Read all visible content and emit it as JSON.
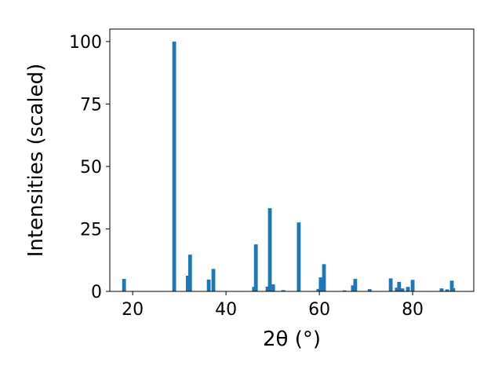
{
  "chart_data": {
    "type": "bar",
    "xlabel": "2θ (°)",
    "ylabel": "Intensities (scaled)",
    "x": [
      18.15,
      28.9,
      31.8,
      32.3,
      36.3,
      37.3,
      46.0,
      46.4,
      48.9,
      49.4,
      50.1,
      52.3,
      55.6,
      59.8,
      60.3,
      61.0,
      65.4,
      67.2,
      67.7,
      70.8,
      75.3,
      76.6,
      77.1,
      77.8,
      79.0,
      80.0,
      86.2,
      87.4,
      88.4,
      88.7
    ],
    "values": [
      5,
      100,
      6.3,
      14.7,
      4.7,
      9,
      1.8,
      18.8,
      1.9,
      33.3,
      2.8,
      0.5,
      27.6,
      1,
      5.6,
      10.9,
      0.4,
      2.4,
      5,
      0.9,
      5.2,
      1.5,
      3.8,
      1.2,
      1.8,
      4.6,
      1.2,
      0.8,
      4.3,
      1.3
    ],
    "color": "#1f77b4",
    "xlim": [
      15.1,
      93.1
    ],
    "xticks": [
      20,
      40,
      60,
      80
    ],
    "ylim": [
      0,
      105
    ],
    "yticks": [
      0,
      25,
      50,
      75,
      100
    ]
  }
}
